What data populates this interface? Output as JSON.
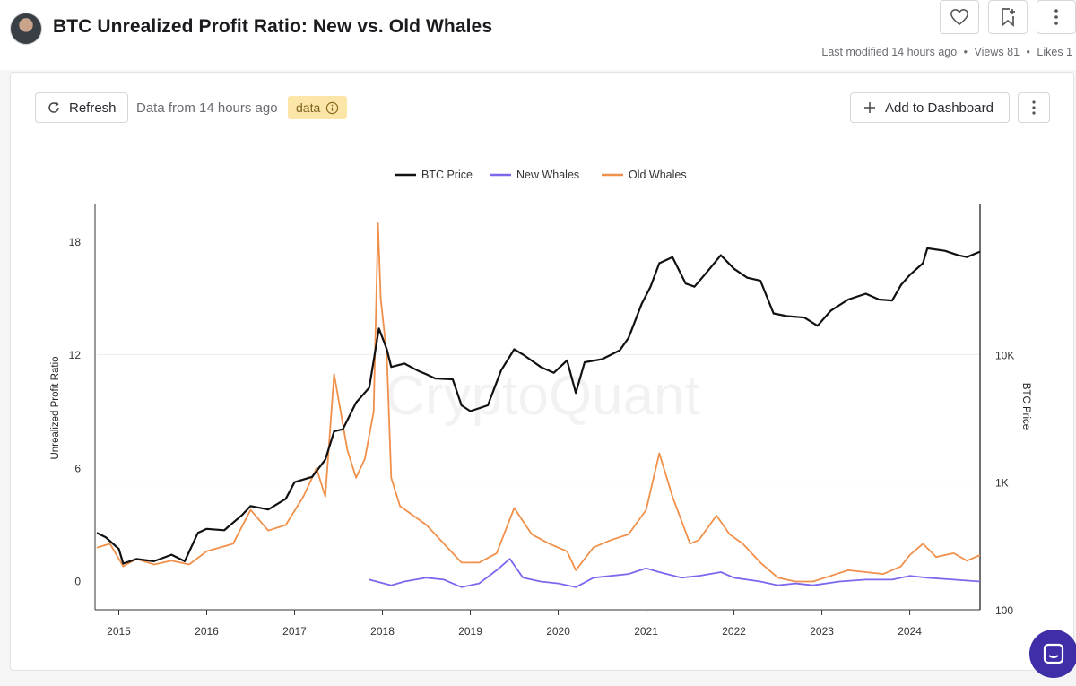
{
  "header": {
    "title": "BTC Unrealized Profit Ratio: New vs. Old Whales",
    "last_modified": "Last modified 14 hours ago",
    "views": "Views 81",
    "likes": "Likes 1",
    "separator": "•"
  },
  "toolbar": {
    "refresh_label": "Refresh",
    "data_from": "Data from 14 hours ago",
    "data_badge": "data",
    "add_dashboard_label": "Add to Dashboard"
  },
  "icons": {
    "like": "heart-icon",
    "bookmark": "bookmark-icon",
    "more": "more-vertical-icon",
    "refresh": "refresh-icon",
    "info": "info-icon",
    "add": "plus-icon",
    "chat": "chat-icon",
    "avatar": "avatar"
  },
  "chart_data": {
    "type": "line",
    "watermark": "CryptoQuant",
    "legend": [
      "BTC Price",
      "New Whales",
      "Old Whales"
    ],
    "legend_position": "top-center",
    "x_ticks": [
      "2015",
      "2016",
      "2017",
      "2018",
      "2019",
      "2020",
      "2021",
      "2022",
      "2023",
      "2024"
    ],
    "x_range": [
      2014.75,
      2024.8
    ],
    "y_left": {
      "label": "Unrealized Profit Ratio",
      "ticks": [
        0,
        6,
        12,
        18
      ],
      "range": [
        -1.5,
        20
      ]
    },
    "y_right": {
      "label": "BTC Price",
      "ticks": [
        "100",
        "1K",
        "10K"
      ],
      "tick_values": [
        100,
        1000,
        10000
      ],
      "scale": "log",
      "range": [
        100,
        150000
      ]
    },
    "colors": {
      "btc": "#111111",
      "new": "#7b68ee",
      "old": "#f0904a",
      "grid": "#ececec"
    },
    "series": [
      {
        "name": "BTC Price",
        "axis": "right",
        "x": [
          2014.75,
          2014.85,
          2015.0,
          2015.05,
          2015.2,
          2015.4,
          2015.6,
          2015.75,
          2015.9,
          2016.0,
          2016.2,
          2016.4,
          2016.5,
          2016.7,
          2016.9,
          2017.0,
          2017.2,
          2017.35,
          2017.45,
          2017.55,
          2017.7,
          2017.85,
          2017.96,
          2018.05,
          2018.1,
          2018.25,
          2018.4,
          2018.5,
          2018.6,
          2018.8,
          2018.9,
          2019.0,
          2019.2,
          2019.35,
          2019.5,
          2019.6,
          2019.8,
          2019.95,
          2020.1,
          2020.2,
          2020.3,
          2020.5,
          2020.7,
          2020.8,
          2020.95,
          2021.05,
          2021.15,
          2021.3,
          2021.45,
          2021.55,
          2021.7,
          2021.85,
          2022.0,
          2022.15,
          2022.3,
          2022.45,
          2022.6,
          2022.8,
          2022.95,
          2023.1,
          2023.3,
          2023.5,
          2023.65,
          2023.8,
          2023.9,
          2024.0,
          2024.15,
          2024.2,
          2024.4,
          2024.55,
          2024.65,
          2024.8
        ],
        "values": [
          400,
          370,
          300,
          230,
          250,
          240,
          270,
          240,
          400,
          430,
          420,
          550,
          650,
          610,
          740,
          1000,
          1100,
          1500,
          2500,
          2600,
          4200,
          5500,
          16000,
          11000,
          8000,
          8500,
          7500,
          7000,
          6500,
          6400,
          4000,
          3600,
          4000,
          7500,
          11000,
          10000,
          8000,
          7200,
          9000,
          5000,
          8700,
          9200,
          10800,
          13500,
          25000,
          34000,
          52000,
          58000,
          36000,
          34000,
          45000,
          60000,
          47000,
          40000,
          38000,
          21000,
          20000,
          19500,
          16800,
          22000,
          27000,
          30000,
          27000,
          26500,
          35000,
          42000,
          52000,
          68000,
          65000,
          60000,
          58000,
          64000
        ]
      },
      {
        "name": "New Whales",
        "axis": "left",
        "x": [
          2017.85,
          2018.1,
          2018.25,
          2018.5,
          2018.7,
          2018.9,
          2019.1,
          2019.3,
          2019.45,
          2019.6,
          2019.8,
          2020.0,
          2020.2,
          2020.4,
          2020.6,
          2020.8,
          2021.0,
          2021.15,
          2021.4,
          2021.6,
          2021.85,
          2022.0,
          2022.3,
          2022.5,
          2022.7,
          2022.9,
          2023.2,
          2023.5,
          2023.8,
          2024.0,
          2024.2,
          2024.5,
          2024.8
        ],
        "values": [
          0.1,
          -0.2,
          0.0,
          0.2,
          0.1,
          -0.3,
          -0.1,
          0.6,
          1.2,
          0.2,
          0.0,
          -0.1,
          -0.3,
          0.2,
          0.3,
          0.4,
          0.7,
          0.5,
          0.2,
          0.3,
          0.5,
          0.2,
          0.0,
          -0.2,
          -0.1,
          -0.2,
          0.0,
          0.1,
          0.1,
          0.3,
          0.2,
          0.1,
          0.0
        ]
      },
      {
        "name": "Old Whales",
        "axis": "left",
        "x": [
          2014.75,
          2014.9,
          2015.05,
          2015.2,
          2015.4,
          2015.6,
          2015.8,
          2016.0,
          2016.3,
          2016.5,
          2016.7,
          2016.9,
          2017.1,
          2017.25,
          2017.35,
          2017.45,
          2017.6,
          2017.7,
          2017.8,
          2017.9,
          2017.95,
          2017.98,
          2018.05,
          2018.1,
          2018.2,
          2018.35,
          2018.5,
          2018.7,
          2018.9,
          2019.1,
          2019.3,
          2019.5,
          2019.7,
          2019.9,
          2020.1,
          2020.2,
          2020.4,
          2020.6,
          2020.8,
          2021.0,
          2021.15,
          2021.3,
          2021.5,
          2021.6,
          2021.8,
          2021.95,
          2022.1,
          2022.3,
          2022.5,
          2022.7,
          2022.9,
          2023.1,
          2023.3,
          2023.5,
          2023.7,
          2023.9,
          2024.0,
          2024.15,
          2024.3,
          2024.5,
          2024.65,
          2024.8
        ],
        "values": [
          1.8,
          2.0,
          0.8,
          1.2,
          0.9,
          1.1,
          0.9,
          1.6,
          2.0,
          3.8,
          2.7,
          3.0,
          4.5,
          6.0,
          4.5,
          11.0,
          7.0,
          5.5,
          6.5,
          9.0,
          19.0,
          15.0,
          12.0,
          5.5,
          4.0,
          3.5,
          3.0,
          2.0,
          1.0,
          1.0,
          1.5,
          3.9,
          2.5,
          2.0,
          1.6,
          0.6,
          1.8,
          2.2,
          2.5,
          3.8,
          6.8,
          4.5,
          2.0,
          2.2,
          3.5,
          2.5,
          2.0,
          1.0,
          0.2,
          0.0,
          0.0,
          0.3,
          0.6,
          0.5,
          0.4,
          0.8,
          1.4,
          2.0,
          1.3,
          1.5,
          1.1,
          1.4
        ]
      }
    ]
  }
}
